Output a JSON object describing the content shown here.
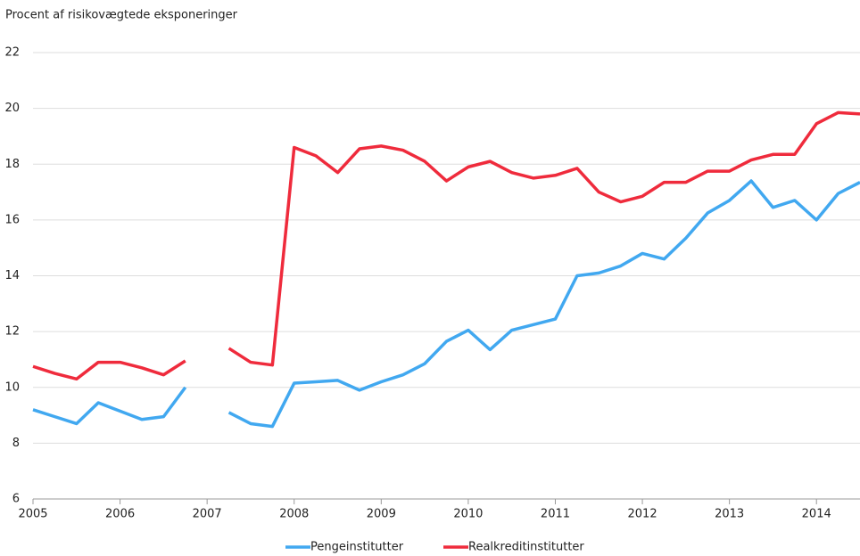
{
  "chart_data": {
    "type": "line",
    "y_label": "Procent af risikovægtede eksponeringer",
    "x": [
      2005,
      2005.25,
      2005.5,
      2005.75,
      2006,
      2006.25,
      2006.5,
      2006.75,
      2007,
      2007.25,
      2007.5,
      2007.75,
      2008,
      2008.25,
      2008.5,
      2008.75,
      2009,
      2009.25,
      2009.5,
      2009.75,
      2010,
      2010.25,
      2010.5,
      2010.75,
      2011,
      2011.25,
      2011.5,
      2011.75,
      2012,
      2012.25,
      2012.5,
      2012.75,
      2013,
      2013.25,
      2013.5,
      2013.75,
      2014,
      2014.25,
      2014.5
    ],
    "series": [
      {
        "name": "Pengeinstitutter",
        "color": "#41a8f0",
        "values": [
          9.2,
          8.95,
          8.7,
          9.45,
          9.15,
          8.85,
          8.95,
          10.0,
          null,
          9.1,
          8.7,
          8.6,
          10.15,
          10.2,
          10.25,
          9.9,
          10.2,
          10.45,
          10.85,
          11.65,
          12.05,
          11.35,
          12.05,
          12.25,
          12.45,
          14.0,
          14.1,
          14.35,
          14.8,
          14.6,
          15.35,
          16.25,
          16.7,
          17.4,
          16.45,
          16.7,
          16.0,
          16.95,
          17.35
        ]
      },
      {
        "name": "Realkreditinstitutter",
        "color": "#ef2b3c",
        "values": [
          10.75,
          10.5,
          10.3,
          10.9,
          10.9,
          10.7,
          10.45,
          10.95,
          null,
          11.4,
          10.9,
          10.8,
          18.6,
          18.3,
          17.7,
          18.55,
          18.65,
          18.5,
          18.1,
          17.4,
          17.9,
          18.1,
          17.7,
          17.5,
          17.6,
          17.85,
          17.0,
          16.65,
          16.85,
          17.35,
          17.35,
          17.75,
          17.75,
          18.15,
          18.35,
          18.35,
          19.45,
          19.85,
          19.8
        ]
      }
    ],
    "xlim": [
      2005,
      2014.5
    ],
    "xticks": [
      2005,
      2006,
      2007,
      2008,
      2009,
      2010,
      2011,
      2012,
      2013,
      2014
    ],
    "ylim": [
      6,
      22
    ],
    "yticks": [
      6,
      8,
      10,
      12,
      14,
      16,
      18,
      20,
      22
    ],
    "grid": true,
    "legend": "bottom"
  }
}
